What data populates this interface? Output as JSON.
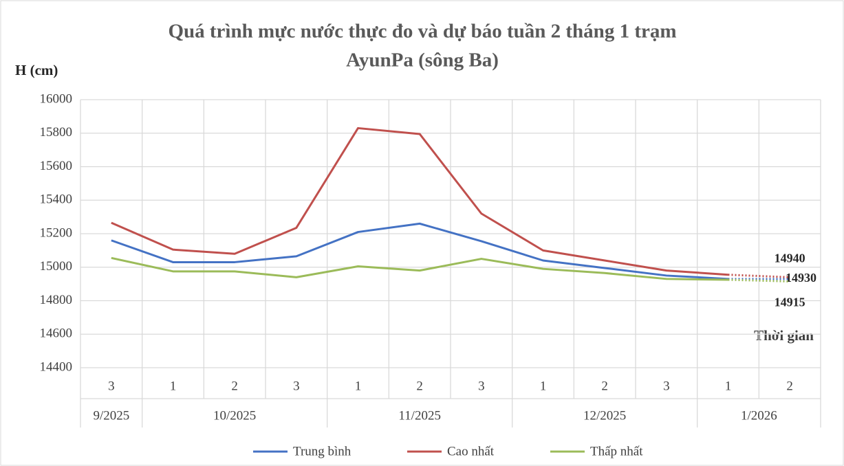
{
  "chart_data": {
    "type": "line",
    "title": [
      "Quá trình mực nước thực đo và dự báo tuần 2 tháng 1 trạm",
      "AyunPa (sông Ba)"
    ],
    "y_label": "H (cm)",
    "x_label": "Thời gian",
    "categories": [
      "3",
      "1",
      "2",
      "3",
      "1",
      "2",
      "3",
      "1",
      "2",
      "3",
      "1",
      "2"
    ],
    "groups": [
      {
        "label": "9/2025",
        "span": 1
      },
      {
        "label": "10/2025",
        "span": 3
      },
      {
        "label": "11/2025",
        "span": 3
      },
      {
        "label": "12/2025",
        "span": 3
      },
      {
        "label": "1/2026",
        "span": 2
      }
    ],
    "forecast_index": 11,
    "series": [
      {
        "name": "Trung bình",
        "color": "#4472c4",
        "values": [
          15160,
          15030,
          15030,
          15065,
          15210,
          15260,
          15155,
          15040,
          14995,
          14950,
          14930,
          14930
        ]
      },
      {
        "name": "Cao nhất",
        "color": "#c0504d",
        "values": [
          15265,
          15105,
          15080,
          15235,
          15830,
          15795,
          15320,
          15100,
          15040,
          14980,
          14955,
          14940
        ]
      },
      {
        "name": "Thấp nhất",
        "color": "#9bbb59",
        "values": [
          15055,
          14975,
          14975,
          14940,
          15005,
          14980,
          15050,
          14990,
          14965,
          14930,
          14925,
          14915
        ]
      }
    ],
    "ylim": [
      14400,
      16000
    ],
    "yticks": [
      14400,
      14600,
      14800,
      15000,
      15200,
      15400,
      15600,
      15800,
      16000
    ],
    "grid": true
  }
}
